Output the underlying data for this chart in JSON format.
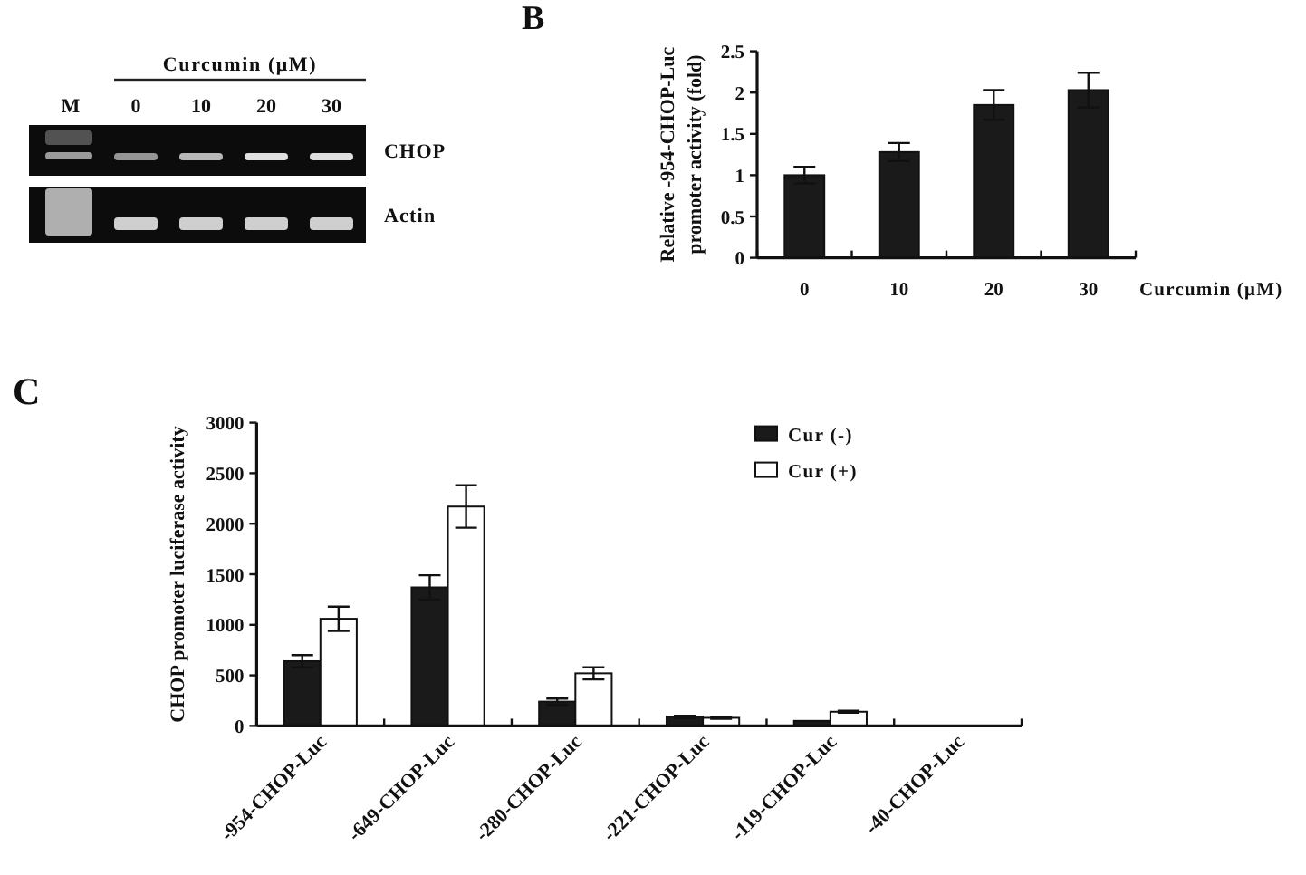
{
  "chart_data": [
    {
      "type": "bar",
      "title": "B",
      "categories": [
        "0",
        "10",
        "20",
        "30"
      ],
      "values": [
        1.0,
        1.28,
        1.85,
        2.03
      ],
      "errors": [
        0.1,
        0.11,
        0.18,
        0.21
      ],
      "color": "#1a1a1a",
      "ylim": [
        0,
        2.5
      ],
      "yticks": [
        0,
        0.5,
        1,
        1.5,
        2,
        2.5
      ],
      "ylabel": "Relative -954-CHOP-Luc\npromoter activity (fold)",
      "xlabel": "Curcumin (μM)",
      "annotations": [
        "Curcumin (μM)",
        "M",
        "0",
        "10",
        "20",
        "30",
        "CHOP",
        "Actin"
      ]
    },
    {
      "type": "bar",
      "title": "C",
      "categories": [
        "-954-CHOP-Luc",
        "-649-CHOP-Luc",
        "-280-CHOP-Luc",
        "-221-CHOP-Luc",
        "-119-CHOP-Luc",
        "-40-CHOP-Luc"
      ],
      "series": [
        {
          "name": "Cur (-)",
          "color": "#1a1a1a",
          "values": [
            640,
            1370,
            240,
            90,
            50,
            0
          ],
          "errors": [
            60,
            120,
            30,
            10,
            null,
            null
          ]
        },
        {
          "name": "Cur (+)",
          "color": "#ffffff",
          "values": [
            1060,
            2170,
            520,
            80,
            140,
            0
          ],
          "errors": [
            120,
            210,
            60,
            10,
            10,
            null
          ]
        }
      ],
      "ylim": [
        0,
        3000
      ],
      "yticks": [
        0,
        500,
        1000,
        1500,
        2000,
        2500,
        3000
      ],
      "ylabel": "CHOP promoter luciferase activity",
      "legend": "top right"
    }
  ]
}
